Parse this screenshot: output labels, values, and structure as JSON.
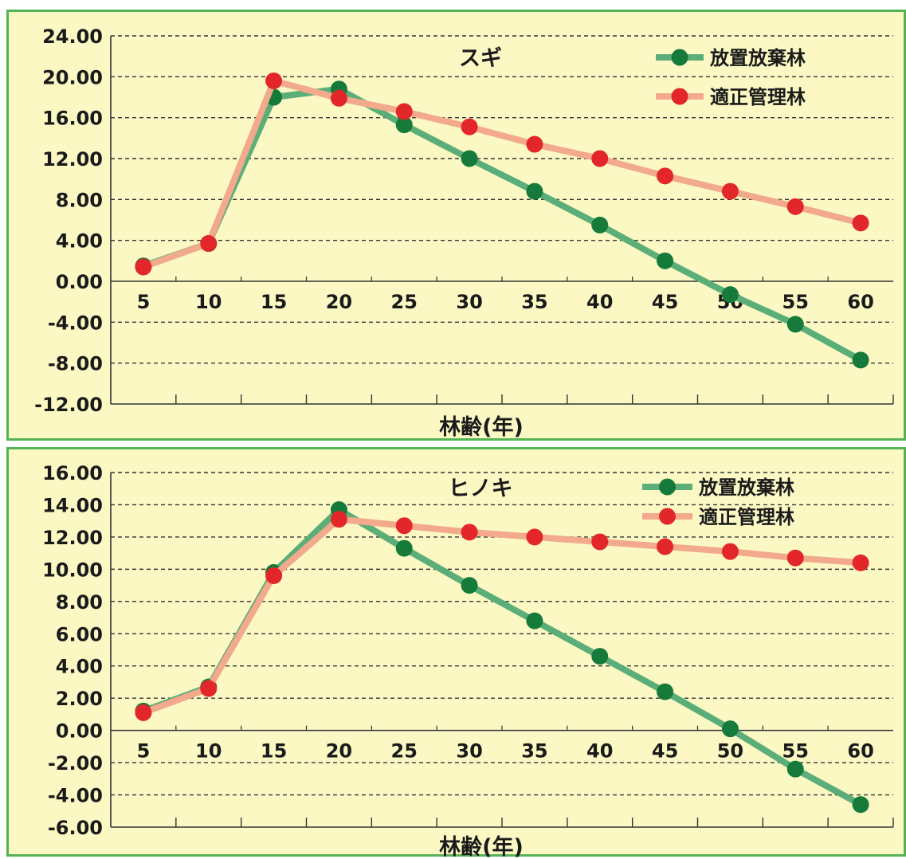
{
  "colors": {
    "panel_background": "#fbf8c4",
    "panel_border": "#54b354",
    "abandoned_line": "#5cae78",
    "abandoned_marker": "#157a3a",
    "managed_line": "#f2a98c",
    "managed_marker": "#e3262a",
    "grid": "#333333"
  },
  "chart_data": [
    {
      "type": "line",
      "title": "スギ",
      "xlabel": "林齢(年)",
      "ylabel": "",
      "categories": [
        "5",
        "10",
        "15",
        "20",
        "25",
        "30",
        "35",
        "40",
        "45",
        "50",
        "55",
        "60"
      ],
      "y_ticks": [
        "24.00",
        "20.00",
        "16.00",
        "12.00",
        "8.00",
        "4.00",
        "0.00",
        "-4.00",
        "-8.00",
        "-12.00"
      ],
      "ylim": [
        -12,
        24
      ],
      "grid": "horizontal-dashed",
      "legend_position": "top-right",
      "series": [
        {
          "name": "放置放棄林",
          "values": [
            1.5,
            3.7,
            18.0,
            18.8,
            15.3,
            12.0,
            8.8,
            5.5,
            2.0,
            -1.3,
            -4.2,
            -7.7
          ]
        },
        {
          "name": "適正管理林",
          "values": [
            1.4,
            3.7,
            19.6,
            17.9,
            16.6,
            15.1,
            13.4,
            12.0,
            10.3,
            8.8,
            7.3,
            5.7
          ]
        }
      ]
    },
    {
      "type": "line",
      "title": "ヒノキ",
      "xlabel": "林齢(年)",
      "ylabel": "",
      "categories": [
        "5",
        "10",
        "15",
        "20",
        "25",
        "30",
        "35",
        "40",
        "45",
        "50",
        "55",
        "60"
      ],
      "y_ticks": [
        "16.00",
        "14.00",
        "12.00",
        "10.00",
        "8.00",
        "6.00",
        "4.00",
        "2.00",
        "0.00",
        "-2.00",
        "-4.00",
        "-6.00"
      ],
      "ylim": [
        -6,
        16
      ],
      "grid": "horizontal-dashed",
      "legend_position": "top-right",
      "series": [
        {
          "name": "放置放棄林",
          "values": [
            1.2,
            2.7,
            9.8,
            13.7,
            11.3,
            9.0,
            6.8,
            4.6,
            2.4,
            0.1,
            -2.4,
            -4.6
          ]
        },
        {
          "name": "適正管理林",
          "values": [
            1.1,
            2.6,
            9.6,
            13.1,
            12.7,
            12.3,
            12.0,
            11.7,
            11.4,
            11.1,
            10.7,
            10.4
          ]
        }
      ]
    }
  ]
}
